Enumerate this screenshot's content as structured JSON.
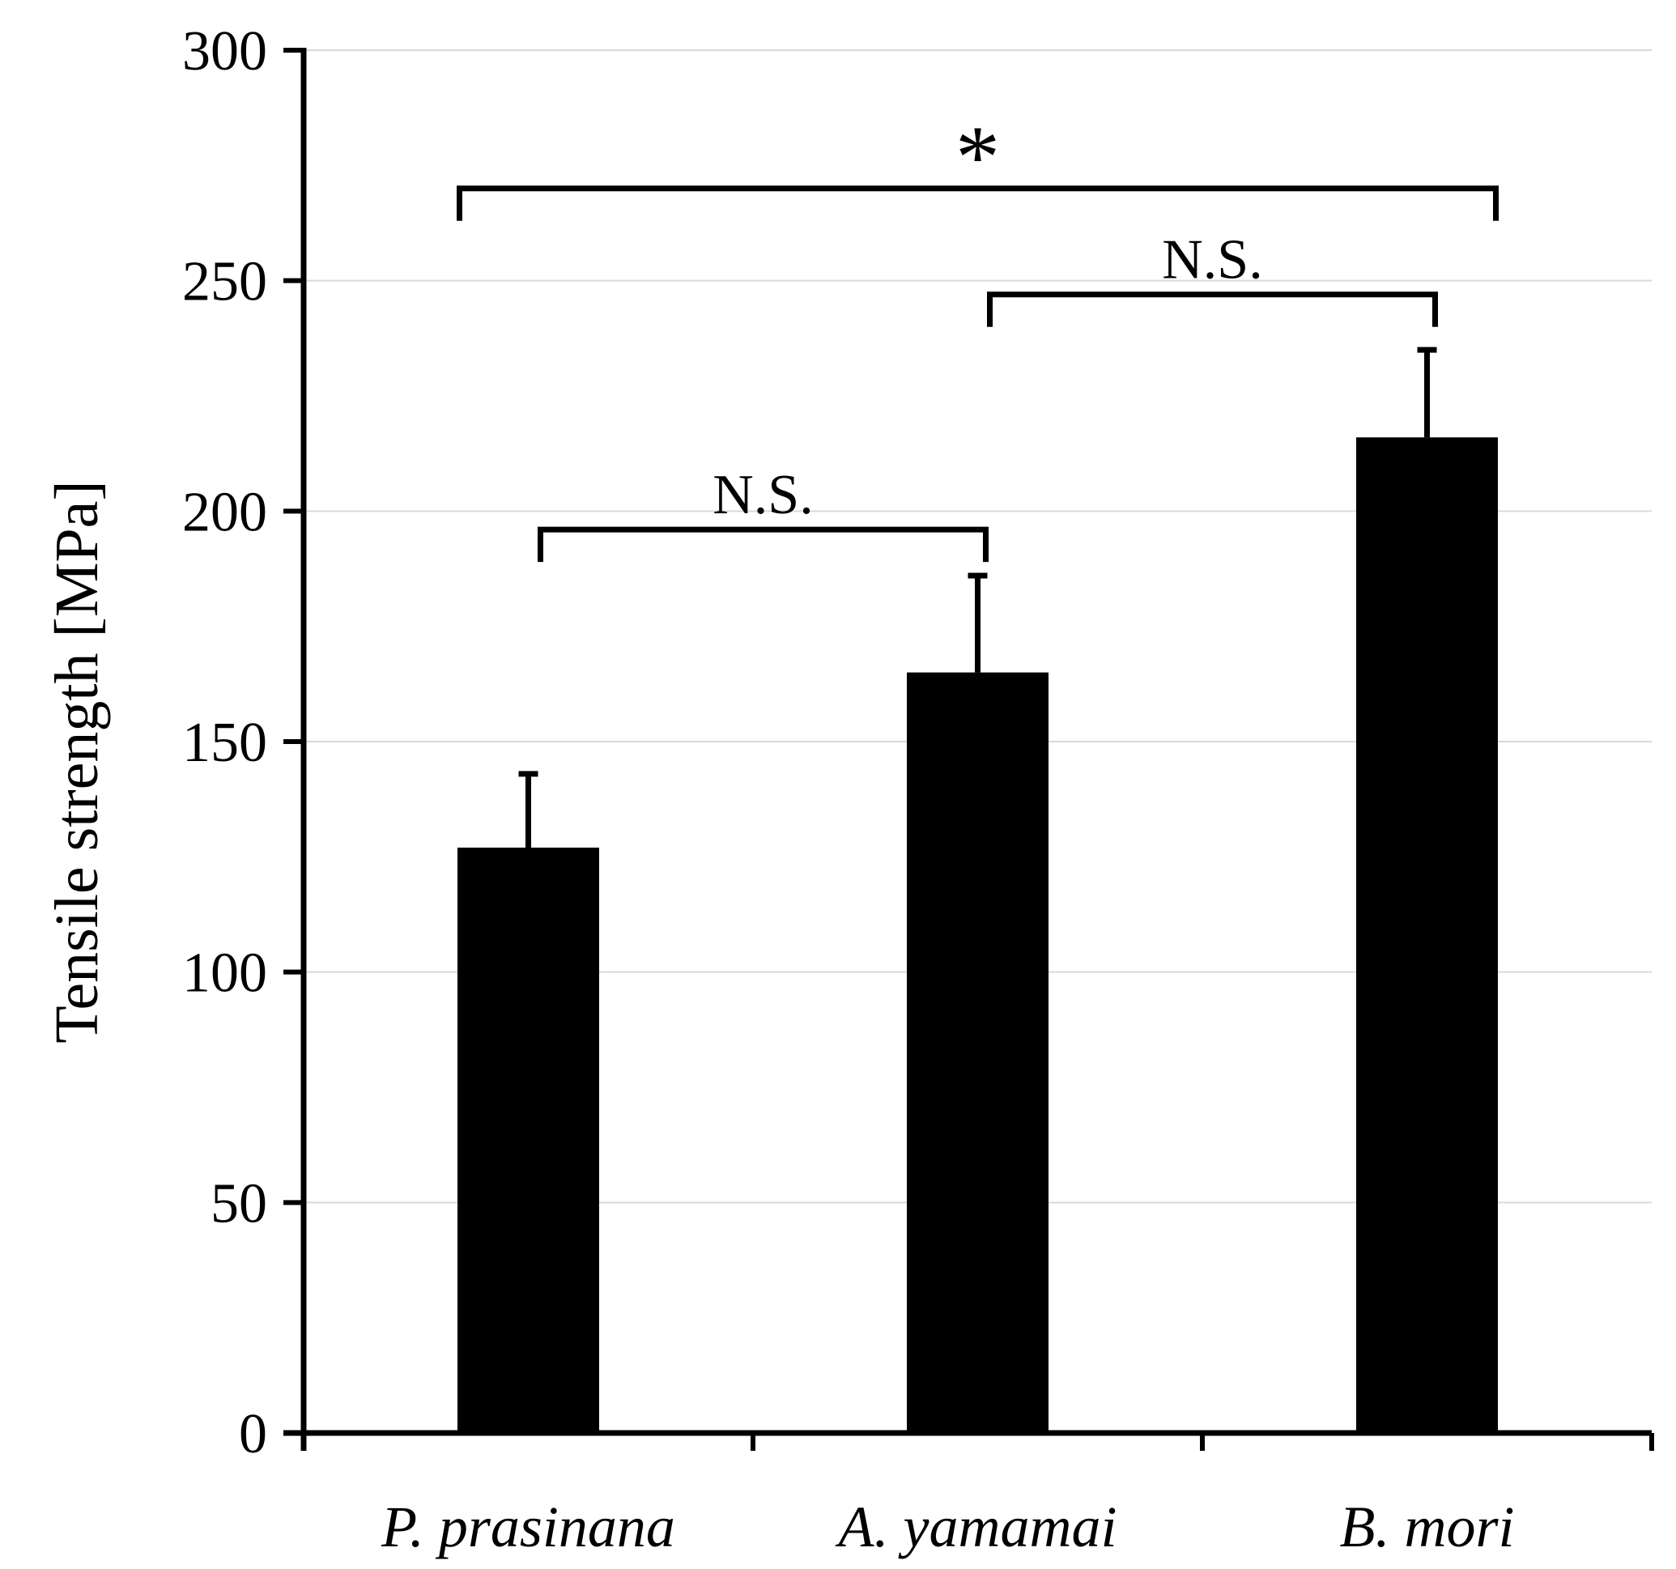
{
  "chart_data": {
    "type": "bar",
    "title": "",
    "xlabel": "",
    "ylabel": "Tensile strength [MPa]",
    "ylim": [
      0,
      300
    ],
    "yticks": [
      0,
      50,
      100,
      150,
      200,
      250,
      300
    ],
    "grid": true,
    "categories": [
      "P. prasinana",
      "A. yamamai",
      "B. mori"
    ],
    "values": [
      127,
      165,
      216
    ],
    "errors": [
      16,
      21,
      19
    ],
    "bar_color": "#000000",
    "annotations": [
      {
        "from": 0,
        "to": 1,
        "label": "N.S.",
        "level": 196
      },
      {
        "from": 1,
        "to": 2,
        "label": "N.S.",
        "level": 247
      },
      {
        "from": 0,
        "to": 2,
        "label": "*",
        "level": 270
      }
    ]
  }
}
